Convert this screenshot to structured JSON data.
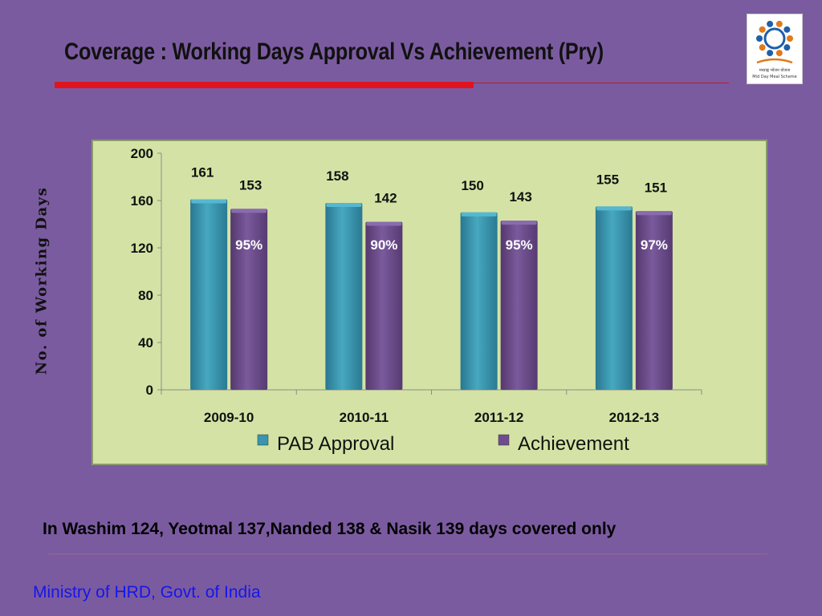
{
  "slide": {
    "title": "Coverage : Working Days Approval Vs Achievement (Pry)",
    "note": "In Washim 124, Yeotmal 137,Nanded 138 & Nasik 139 days covered only",
    "footer": "Ministry of HRD, Govt. of India",
    "logo": {
      "icon": "mid-day-meal-scheme-logo",
      "text_line1": "मध्याह्न भोजन योजना",
      "text_line2": "Mid Day Meal Scheme"
    }
  },
  "colors": {
    "background": "#7b5ba0",
    "title_rule": "#e0141e",
    "plot_background": "#d4e3a5",
    "pab_approval": "#3a95ad",
    "achievement": "#6e4c8e",
    "percent_label": "#ffffff",
    "footer_text": "#1616e8"
  },
  "chart_data": {
    "type": "bar",
    "title": "",
    "xlabel": "",
    "ylabel": "No. of Working Days",
    "ylim": [
      0,
      200
    ],
    "yticks": [
      0,
      40,
      80,
      120,
      160,
      200
    ],
    "grid": false,
    "legend_position": "bottom",
    "categories": [
      "2009-10",
      "2010-11",
      "2011-12",
      "2012-13"
    ],
    "series": [
      {
        "name": "PAB Approval",
        "values": [
          161,
          158,
          150,
          155
        ]
      },
      {
        "name": "Achievement",
        "values": [
          153,
          142,
          143,
          151
        ]
      }
    ],
    "annotations": [
      "95%",
      "90%",
      "95%",
      "97%"
    ]
  }
}
